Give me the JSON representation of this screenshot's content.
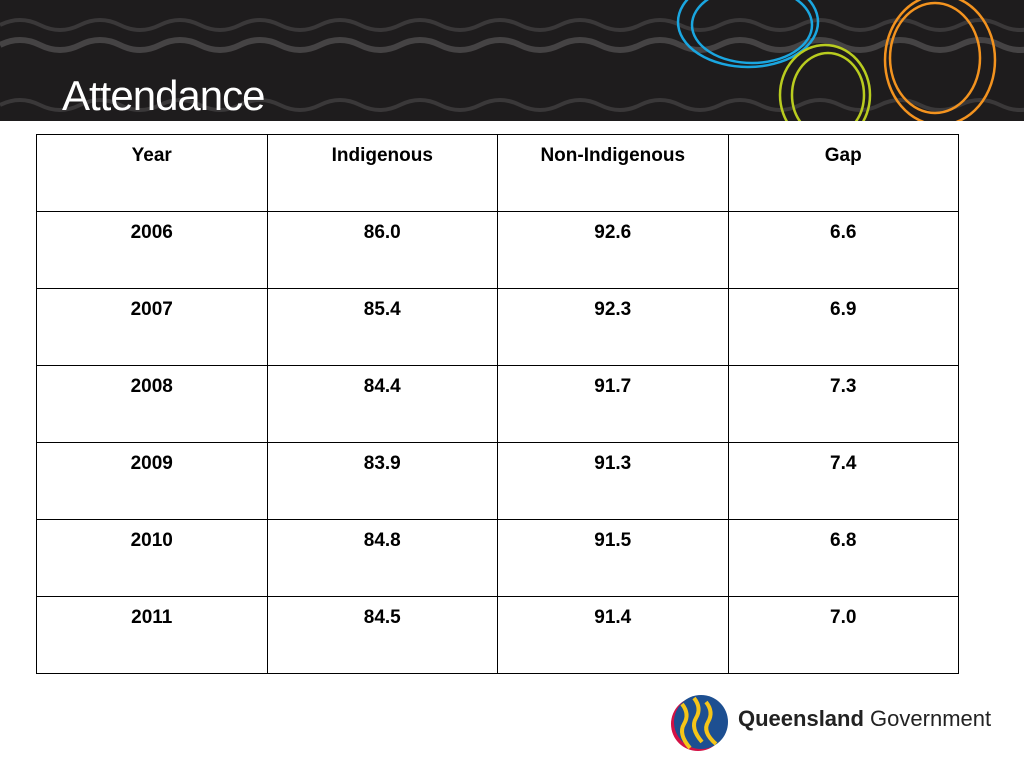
{
  "slide": {
    "title": "Attendance"
  },
  "table": {
    "headers": [
      "Year",
      "Indigenous",
      "Non-Indigenous",
      "Gap"
    ],
    "rows": [
      [
        "2006",
        "86.0",
        "92.6",
        "6.6"
      ],
      [
        "2007",
        "85.4",
        "92.3",
        "6.9"
      ],
      [
        "2008",
        "84.4",
        "91.7",
        "7.3"
      ],
      [
        "2009",
        "83.9",
        "91.3",
        "7.4"
      ],
      [
        "2010",
        "84.8",
        "91.5",
        "6.8"
      ],
      [
        "2011",
        "84.5",
        "91.4",
        "7.0"
      ]
    ]
  },
  "logo": {
    "brand_bold": "Queensland",
    "brand_light": "Government"
  },
  "colors": {
    "banner": "#1e1c1d",
    "blue": "#1aa6e0",
    "orange": "#f3931f",
    "lime": "#b9cc1f"
  }
}
